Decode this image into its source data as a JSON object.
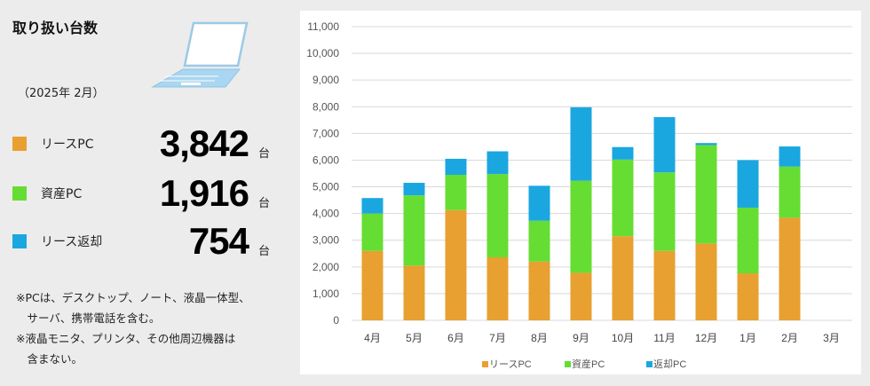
{
  "summary": {
    "title": "取り扱い台数",
    "period": "（2025年 2月）",
    "unit": "台",
    "stats": [
      {
        "label": "リースPC",
        "value": "3,842",
        "color": "#e8a030"
      },
      {
        "label": "資産PC",
        "value": "1,916",
        "color": "#66dd33"
      },
      {
        "label": "リース返却",
        "value": "754",
        "color": "#1aa7e0"
      }
    ],
    "notes": [
      "※PCは、デスクトップ、ノート、液晶一体型、",
      "　サーバ、携帯電話を含む。",
      "※液晶モニタ、プリンタ、その他周辺機器は",
      "　含まない。"
    ]
  },
  "chart_data": {
    "type": "bar",
    "stacked": true,
    "categories": [
      "4月",
      "5月",
      "6月",
      "7月",
      "8月",
      "9月",
      "10月",
      "11月",
      "12月",
      "1月",
      "2月",
      "3月"
    ],
    "series": [
      {
        "name": "リースPC",
        "color": "#e8a030",
        "values": [
          2600,
          2050,
          4130,
          2360,
          2200,
          1780,
          3150,
          2600,
          2880,
          1760,
          3842,
          0
        ]
      },
      {
        "name": "資産PC",
        "color": "#66dd33",
        "values": [
          1400,
          2630,
          1320,
          3120,
          1530,
          3450,
          2870,
          2940,
          3680,
          2460,
          1916,
          0
        ]
      },
      {
        "name": "返却PC",
        "color": "#1aa7e0",
        "values": [
          580,
          470,
          600,
          850,
          1310,
          2750,
          470,
          2070,
          80,
          1780,
          754,
          0
        ]
      }
    ],
    "yticks": [
      "0",
      "1,000",
      "2,000",
      "3,000",
      "4,000",
      "5,000",
      "6,000",
      "7,000",
      "8,000",
      "9,000",
      "10,000",
      "11,000"
    ],
    "ylim": [
      0,
      11000
    ],
    "grid": true,
    "legend": "bottom"
  }
}
